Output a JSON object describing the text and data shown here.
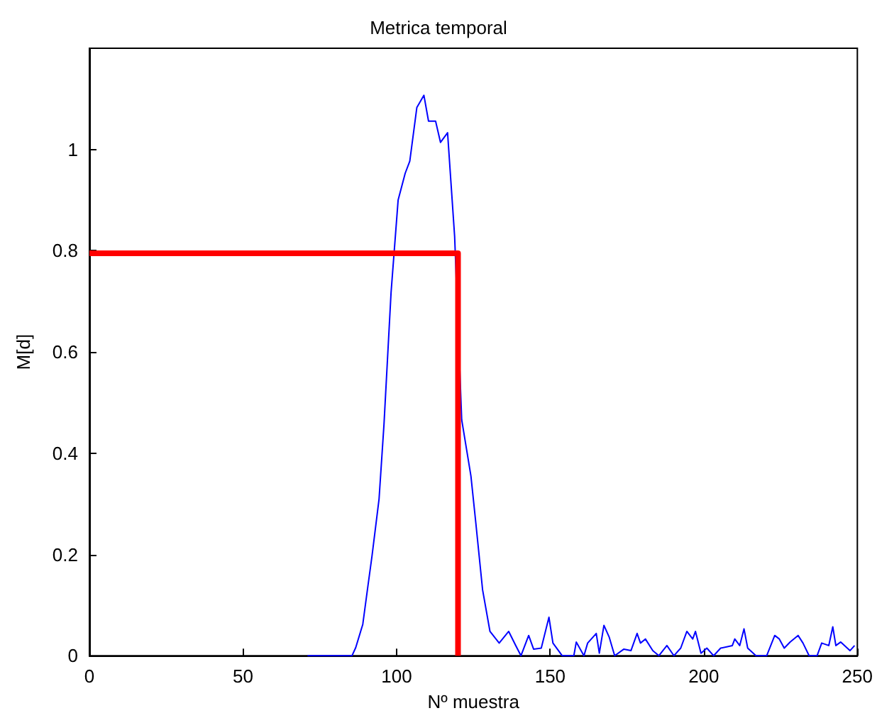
{
  "chart_data": {
    "type": "line",
    "title": "Metrica temporal",
    "xlabel": "Nº muestra",
    "ylabel": "M[d]",
    "xlim": [
      0,
      250
    ],
    "xticks": [
      0,
      50,
      100,
      150,
      200,
      250
    ],
    "ylim": [
      0,
      1.2
    ],
    "yticks": [
      0,
      0.2,
      0.4,
      0.6,
      0.8,
      1
    ],
    "grid": false,
    "marker": "none",
    "line_style": "solid",
    "series": [
      {
        "color": "#0000ff",
        "x": [
          71,
          85.5,
          86.7,
          89,
          90.5,
          92,
          94.3,
          95.9,
          98.2,
          100.5,
          102.8,
          104.3,
          106.6,
          108.9,
          110.4,
          112.7,
          114.3,
          116.6,
          118.9,
          121.2,
          124.2,
          125.8,
          128,
          130.4,
          133.4,
          136.5,
          138.8,
          140.5,
          143,
          144.6,
          147.1,
          149.6,
          150.9,
          153.9,
          157.7,
          158.5,
          161,
          162.2,
          165,
          166,
          167.5,
          169.2,
          171,
          174,
          176.3,
          178.3,
          179.4,
          181,
          183.4,
          185.4,
          188,
          190.3,
          192.5,
          194.5,
          196.4,
          197.3,
          199.1,
          201,
          203.2,
          205.5,
          209.3,
          210.1,
          211.7,
          213.1,
          214.3,
          217,
          220.5,
          223.1,
          224.6,
          226.2,
          228.1,
          230.7,
          232.3,
          234.3,
          236.9,
          238.4,
          240.7,
          242,
          243,
          244.6,
          247.6,
          249.1
        ],
        "values": [
          0,
          0,
          0.016,
          0.062,
          0.13,
          0.197,
          0.31,
          0.457,
          0.717,
          0.9,
          0.953,
          0.977,
          1.083,
          1.107,
          1.056,
          1.056,
          1.014,
          1.033,
          0.828,
          0.466,
          0.355,
          0.262,
          0.13,
          0.048,
          0.025,
          0.048,
          0.02,
          0,
          0.04,
          0.013,
          0.015,
          0.076,
          0.025,
          0,
          0,
          0.027,
          0,
          0.025,
          0.044,
          0.005,
          0.06,
          0.037,
          0,
          0.013,
          0.01,
          0.044,
          0.025,
          0.033,
          0.01,
          0,
          0.02,
          0,
          0.015,
          0.048,
          0.033,
          0.048,
          0.005,
          0.015,
          0,
          0.015,
          0.02,
          0.033,
          0.02,
          0.053,
          0.015,
          0,
          0,
          0.04,
          0.033,
          0.015,
          0.027,
          0.04,
          0.025,
          0,
          0,
          0.025,
          0.02,
          0.057,
          0.02,
          0.027,
          0.01,
          0.02
        ]
      },
      {
        "color": "#ff0000",
        "x": [
          0,
          120,
          120
        ],
        "values": [
          0.795,
          0.795,
          0
        ]
      }
    ]
  }
}
